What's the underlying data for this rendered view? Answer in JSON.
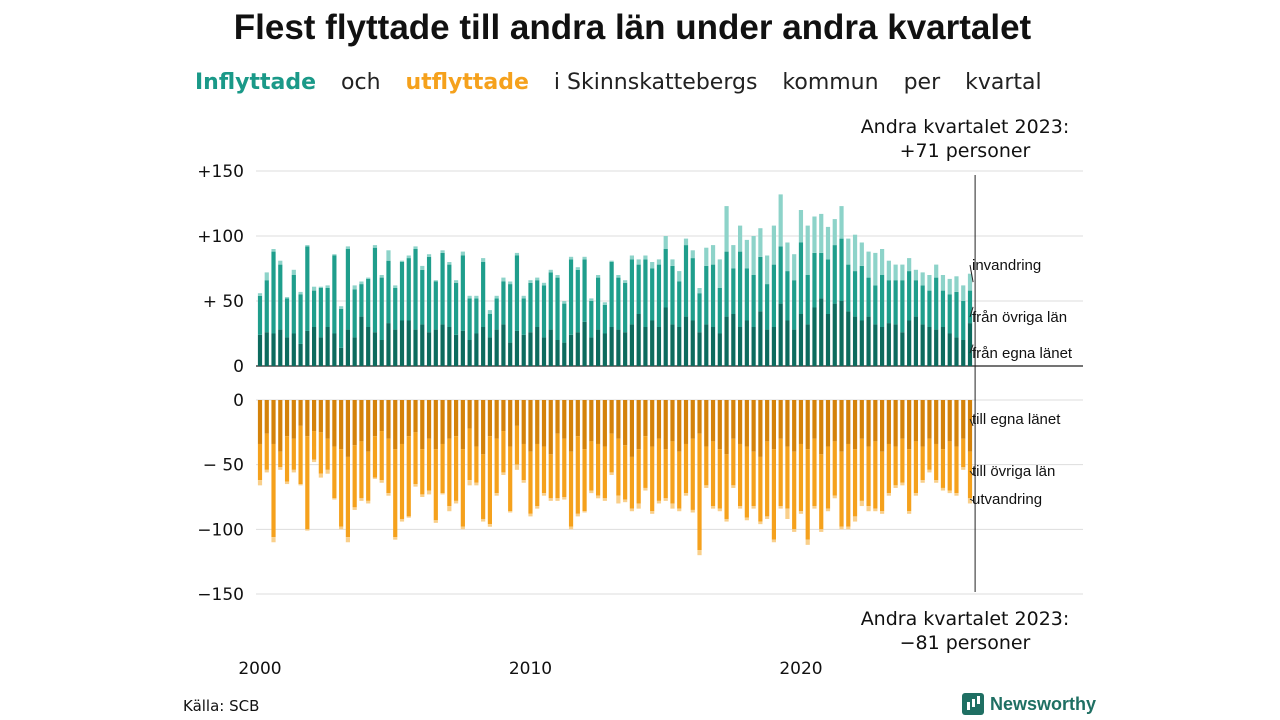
{
  "title": "Flest flyttade till andra län under andra kvartalet",
  "subtitle": {
    "inflyttade": "Inflyttade",
    "och": "och",
    "utflyttade": "utflyttade",
    "rest1": "i Skinnskattebergs",
    "rest2": "kommun",
    "rest3": "per",
    "rest4": "kvartal"
  },
  "annotation_top": {
    "line1": "Andra kvartalet 2023:",
    "line2": "+71 personer"
  },
  "annotation_bottom": {
    "line1": "Andra kvartalet 2023:",
    "line2": "−81 personer"
  },
  "source": "Källa: SCB",
  "brand": "Newsworthy",
  "colors": {
    "in_own": "#0d6b5e",
    "in_other": "#1f9e8c",
    "in_emig": "#8dd3c9",
    "out_own": "#d4820a",
    "out_other": "#f5a11c",
    "out_emig": "#f9cf8a",
    "grid": "#dddddd"
  },
  "chart_data": {
    "type": "bar",
    "stacked": true,
    "x_start": "2000-Q1",
    "x_end": "2023-Q2",
    "x_ticks": [
      "2000",
      "2010",
      "2020"
    ],
    "panels": [
      {
        "name": "inflyttade",
        "yticks": [
          {
            "v": 150,
            "label": "+150"
          },
          {
            "v": 100,
            "label": "+100"
          },
          {
            "v": 50,
            "label": "+ 50"
          },
          {
            "v": 0,
            "label": "0"
          }
        ],
        "ylim": [
          0,
          150
        ],
        "series_labels": [
          "från egna länet",
          "från övriga län",
          "invandring"
        ],
        "series": [
          {
            "name": "från egna länet",
            "values": [
              24,
              26,
              25,
              28,
              22,
              25,
              17,
              27,
              30,
              22,
              30,
              25,
              14,
              28,
              22,
              38,
              30,
              26,
              20,
              33,
              28,
              35,
              35,
              28,
              32,
              26,
              28,
              32,
              30,
              24,
              27,
              20,
              25,
              30,
              22,
              28,
              32,
              18,
              27,
              24,
              26,
              30,
              22,
              28,
              20,
              18,
              24,
              26,
              34,
              22,
              28,
              25,
              30,
              28,
              26,
              32,
              40,
              30,
              35,
              30,
              45,
              32,
              30,
              38,
              35,
              26,
              32,
              30,
              25,
              38,
              40,
              30,
              35,
              30,
              42,
              28,
              30,
              48,
              35,
              28,
              40,
              32,
              45,
              52,
              40,
              48,
              50,
              42,
              38,
              35,
              38,
              32,
              30,
              33,
              32,
              26,
              35,
              38,
              32,
              30,
              28,
              30,
              25,
              22,
              20,
              33
            ]
          },
          {
            "name": "från övriga län",
            "values": [
              30,
              40,
              63,
              50,
              30,
              45,
              38,
              65,
              28,
              38,
              30,
              60,
              30,
              62,
              37,
              25,
              37,
              65,
              48,
              48,
              32,
              45,
              48,
              62,
              42,
              58,
              37,
              55,
              48,
              40,
              58,
              32,
              27,
              50,
              18,
              24,
              33,
              45,
              58,
              28,
              38,
              36,
              40,
              44,
              48,
              30,
              58,
              48,
              48,
              28,
              40,
              22,
              50,
              40,
              38,
              50,
              38,
              52,
              40,
              48,
              45,
              45,
              35,
              55,
              48,
              30,
              45,
              48,
              35,
              50,
              35,
              58,
              40,
              40,
              42,
              35,
              48,
              44,
              38,
              38,
              55,
              38,
              42,
              35,
              42,
              45,
              48,
              36,
              35,
              42,
              30,
              30,
              40,
              33,
              34,
              40,
              38,
              28,
              30,
              28,
              40,
              28,
              30,
              35,
              30,
              25
            ]
          },
          {
            "name": "invandring",
            "values": [
              2,
              6,
              2,
              3,
              1,
              4,
              2,
              1,
              3,
              1,
              2,
              1,
              2,
              2,
              3,
              2,
              1,
              2,
              2,
              8,
              2,
              1,
              2,
              2,
              3,
              2,
              1,
              2,
              2,
              2,
              3,
              2,
              2,
              3,
              3,
              2,
              3,
              2,
              2,
              2,
              2,
              2,
              2,
              2,
              2,
              2,
              2,
              2,
              2,
              2,
              2,
              2,
              1,
              2,
              2,
              3,
              4,
              3,
              5,
              4,
              10,
              5,
              8,
              5,
              6,
              4,
              14,
              15,
              22,
              35,
              18,
              20,
              22,
              30,
              22,
              22,
              30,
              40,
              22,
              20,
              25,
              38,
              28,
              30,
              25,
              20,
              25,
              20,
              28,
              18,
              20,
              25,
              20,
              15,
              12,
              12,
              10,
              8,
              10,
              12,
              10,
              12,
              12,
              12,
              12,
              13
            ]
          }
        ]
      },
      {
        "name": "utflyttade",
        "yticks": [
          {
            "v": 0,
            "label": "0"
          },
          {
            "v": -50,
            "label": "− 50"
          },
          {
            "v": -100,
            "label": "−100"
          },
          {
            "v": -150,
            "label": "−150"
          }
        ],
        "ylim": [
          -150,
          0
        ],
        "series_labels": [
          "till egna länet",
          "till övriga län",
          "utvandring"
        ],
        "series": [
          {
            "name": "till egna länet",
            "values": [
              -34,
              -26,
              -34,
              -40,
              -28,
              -30,
              -20,
              -28,
              -24,
              -25,
              -30,
              -36,
              -38,
              -44,
              -35,
              -32,
              -40,
              -28,
              -24,
              -30,
              -38,
              -34,
              -28,
              -25,
              -38,
              -30,
              -38,
              -34,
              -30,
              -28,
              -38,
              -22,
              -36,
              -42,
              -28,
              -30,
              -24,
              -36,
              -20,
              -34,
              -40,
              -34,
              -36,
              -42,
              -26,
              -30,
              -40,
              -28,
              -38,
              -32,
              -34,
              -36,
              -26,
              -30,
              -35,
              -44,
              -38,
              -28,
              -36,
              -30,
              -38,
              -32,
              -40,
              -34,
              -30,
              -26,
              -36,
              -32,
              -38,
              -42,
              -30,
              -34,
              -36,
              -40,
              -44,
              -32,
              -38,
              -30,
              -36,
              -40,
              -34,
              -38,
              -30,
              -42,
              -36,
              -32,
              -40,
              -34,
              -38,
              -30,
              -36,
              -32,
              -40,
              -34,
              -36,
              -30,
              -38,
              -32,
              -36,
              -30,
              -34,
              -38,
              -32,
              -36,
              -30,
              -40
            ]
          },
          {
            "name": "till övriga län",
            "values": [
              -28,
              -28,
              -72,
              -12,
              -35,
              -24,
              -45,
              -72,
              -22,
              -32,
              -24,
              -40,
              -60,
              -62,
              -48,
              -44,
              -38,
              -32,
              -38,
              -42,
              -68,
              -58,
              -62,
              -40,
              -35,
              -40,
              -55,
              -38,
              -52,
              -50,
              -60,
              -40,
              -28,
              -50,
              -68,
              -42,
              -32,
              -50,
              -30,
              -28,
              -48,
              -48,
              -36,
              -34,
              -50,
              -45,
              -58,
              -60,
              -48,
              -38,
              -40,
              -40,
              -30,
              -44,
              -42,
              -40,
              -42,
              -40,
              -50,
              -48,
              -38,
              -48,
              -44,
              -38,
              -55,
              -90,
              -30,
              -50,
              -46,
              -50,
              -36,
              -48,
              -55,
              -42,
              -50,
              -58,
              -70,
              -52,
              -48,
              -60,
              -52,
              -70,
              -52,
              -58,
              -48,
              -42,
              -58,
              -64,
              -52,
              -48,
              -46,
              -52,
              -46,
              -38,
              -30,
              -34,
              -48,
              -40,
              -26,
              -24,
              -28,
              -30,
              -38,
              -36,
              -22,
              -36
            ]
          },
          {
            "name": "utvandring",
            "values": [
              -4,
              -2,
              -4,
              -2,
              -2,
              -2,
              -1,
              -1,
              -2,
              -3,
              -3,
              -1,
              -2,
              -4,
              -2,
              -2,
              -2,
              -1,
              -2,
              -2,
              -2,
              -2,
              -1,
              -2,
              -2,
              -3,
              -2,
              -1,
              -4,
              -2,
              -2,
              -4,
              -2,
              -2,
              -2,
              -2,
              -2,
              -1,
              -4,
              -2,
              -2,
              -2,
              -2,
              -2,
              -2,
              -2,
              -2,
              -2,
              -1,
              -2,
              -2,
              -2,
              -2,
              -6,
              -2,
              -2,
              -4,
              -2,
              -2,
              -2,
              -2,
              -4,
              -2,
              -2,
              -2,
              -4,
              -2,
              -2,
              -2,
              -2,
              -2,
              -2,
              -2,
              -2,
              -2,
              -2,
              -2,
              -2,
              -8,
              -2,
              -2,
              -4,
              -2,
              -2,
              -2,
              -2,
              -2,
              -2,
              -4,
              -4,
              -4,
              -2,
              -2,
              -2,
              -2,
              -2,
              -2,
              -2,
              -2,
              -2,
              -2,
              -2,
              -2,
              -2,
              -2,
              -4
            ]
          }
        ]
      }
    ]
  }
}
